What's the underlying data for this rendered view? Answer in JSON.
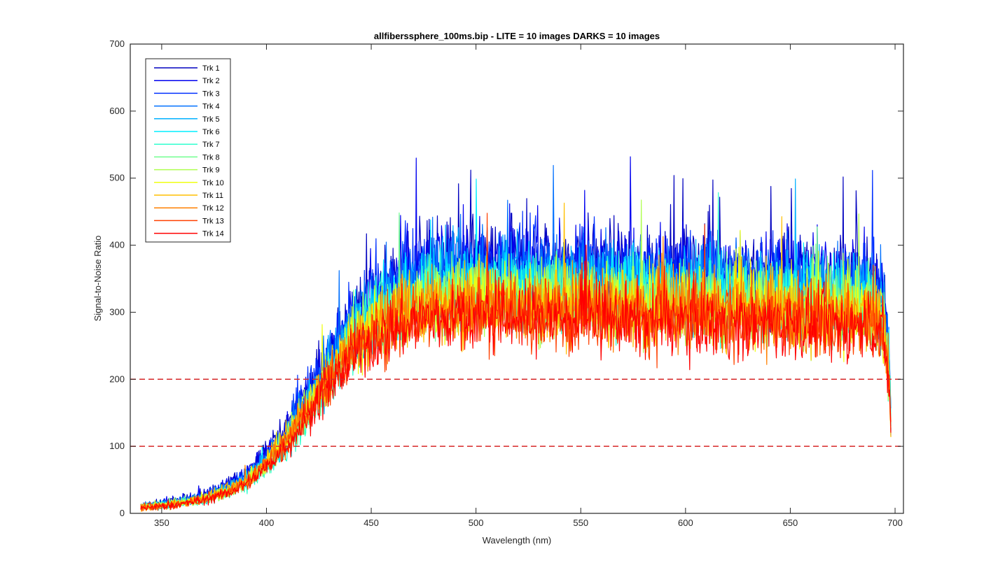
{
  "chart_data": {
    "type": "line",
    "title": "allfiberssphere_100ms.bip - LITE =  10 images  DARKS = 10 images",
    "xlabel": "Wavelength (nm)",
    "ylabel": "Signal-to-Noise Ratio",
    "xlim": [
      335,
      704
    ],
    "ylim": [
      0,
      700
    ],
    "xticks": [
      350,
      400,
      450,
      500,
      550,
      600,
      650,
      700
    ],
    "yticks": [
      0,
      100,
      200,
      300,
      400,
      500,
      600,
      700
    ],
    "grid": false,
    "legend_position": "top-left",
    "reference_lines": [
      {
        "y": 100,
        "color": "#d62728",
        "style": "dashed"
      },
      {
        "y": 200,
        "color": "#d62728",
        "style": "dashed"
      }
    ],
    "x": [
      340,
      350,
      360,
      370,
      380,
      390,
      400,
      410,
      420,
      430,
      440,
      450,
      460,
      470,
      480,
      490,
      500,
      510,
      520,
      530,
      540,
      550,
      560,
      570,
      580,
      590,
      600,
      610,
      620,
      630,
      640,
      650,
      660,
      670,
      680,
      690,
      694,
      697,
      698
    ],
    "series": [
      {
        "name": "Trk 1",
        "color": "#0000bf",
        "values": [
          11,
          15,
          20,
          28,
          40,
          60,
          90,
          130,
          185,
          235,
          290,
          320,
          345,
          365,
          370,
          372,
          375,
          375,
          372,
          370,
          370,
          372,
          370,
          368,
          365,
          365,
          365,
          365,
          363,
          360,
          360,
          360,
          358,
          356,
          355,
          352,
          335,
          250,
          150
        ]
      },
      {
        "name": "Trk 2",
        "color": "#0000ef",
        "values": [
          11,
          15,
          20,
          27,
          39,
          58,
          88,
          127,
          182,
          232,
          287,
          317,
          342,
          360,
          365,
          367,
          370,
          370,
          368,
          366,
          366,
          368,
          366,
          364,
          361,
          361,
          361,
          361,
          359,
          356,
          356,
          356,
          354,
          352,
          351,
          348,
          330,
          245,
          145
        ]
      },
      {
        "name": "Trk 3",
        "color": "#0030ff",
        "values": [
          10,
          14,
          19,
          26,
          37,
          55,
          85,
          123,
          177,
          227,
          282,
          312,
          336,
          354,
          360,
          362,
          365,
          365,
          362,
          361,
          361,
          362,
          361,
          359,
          356,
          356,
          356,
          356,
          354,
          351,
          351,
          351,
          349,
          347,
          346,
          343,
          326,
          240,
          140
        ]
      },
      {
        "name": "Trk 4",
        "color": "#0070ff",
        "values": [
          10,
          14,
          18,
          25,
          35,
          52,
          81,
          118,
          170,
          220,
          275,
          305,
          330,
          347,
          353,
          355,
          358,
          358,
          355,
          354,
          354,
          355,
          354,
          352,
          349,
          349,
          349,
          349,
          347,
          344,
          344,
          344,
          342,
          340,
          339,
          336,
          320,
          235,
          135
        ]
      },
      {
        "name": "Trk 5",
        "color": "#00b0ff",
        "values": [
          10,
          13,
          17,
          23,
          33,
          49,
          77,
          112,
          163,
          212,
          267,
          297,
          321,
          338,
          344,
          346,
          349,
          349,
          346,
          345,
          345,
          346,
          345,
          343,
          340,
          340,
          340,
          340,
          338,
          335,
          335,
          335,
          333,
          331,
          330,
          328,
          312,
          230,
          130
        ]
      },
      {
        "name": "Trk 6",
        "color": "#00efff",
        "values": [
          9,
          12,
          16,
          22,
          31,
          46,
          73,
          106,
          155,
          204,
          258,
          288,
          312,
          329,
          335,
          337,
          340,
          340,
          337,
          336,
          336,
          337,
          336,
          334,
          331,
          331,
          331,
          331,
          329,
          327,
          327,
          327,
          325,
          323,
          322,
          320,
          305,
          225,
          128
        ]
      },
      {
        "name": "Trk 7",
        "color": "#30ffcf",
        "values": [
          9,
          12,
          15,
          21,
          29,
          43,
          69,
          101,
          148,
          197,
          250,
          280,
          303,
          320,
          326,
          328,
          331,
          331,
          328,
          327,
          327,
          328,
          327,
          325,
          322,
          322,
          322,
          322,
          320,
          318,
          318,
          318,
          316,
          314,
          313,
          312,
          298,
          220,
          125
        ]
      },
      {
        "name": "Trk 8",
        "color": "#70ff8f",
        "values": [
          9,
          12,
          16,
          21,
          30,
          45,
          72,
          105,
          152,
          200,
          250,
          278,
          300,
          316,
          322,
          324,
          326,
          326,
          323,
          322,
          322,
          323,
          322,
          320,
          317,
          317,
          317,
          317,
          315,
          313,
          313,
          313,
          311,
          309,
          308,
          307,
          293,
          218,
          125
        ]
      },
      {
        "name": "Trk 9",
        "color": "#afff50",
        "values": [
          9,
          12,
          16,
          22,
          31,
          47,
          75,
          109,
          157,
          204,
          252,
          278,
          298,
          312,
          318,
          320,
          322,
          322,
          319,
          318,
          318,
          319,
          318,
          316,
          313,
          313,
          313,
          313,
          311,
          309,
          309,
          309,
          307,
          305,
          304,
          303,
          290,
          215,
          125
        ]
      },
      {
        "name": "Trk 10",
        "color": "#efff10",
        "values": [
          9,
          12,
          16,
          22,
          32,
          48,
          77,
          112,
          160,
          207,
          253,
          278,
          297,
          310,
          315,
          317,
          319,
          319,
          316,
          315,
          315,
          316,
          315,
          313,
          310,
          310,
          310,
          310,
          308,
          306,
          306,
          306,
          304,
          302,
          301,
          300,
          287,
          213,
          125
        ]
      },
      {
        "name": "Trk 11",
        "color": "#ffbf00",
        "values": [
          9,
          12,
          16,
          22,
          32,
          48,
          77,
          113,
          161,
          207,
          252,
          276,
          294,
          306,
          311,
          313,
          314,
          314,
          311,
          310,
          310,
          311,
          310,
          308,
          305,
          305,
          305,
          305,
          303,
          301,
          301,
          301,
          299,
          297,
          296,
          295,
          283,
          210,
          125
        ]
      },
      {
        "name": "Trk 12",
        "color": "#ff8000",
        "values": [
          9,
          11,
          15,
          21,
          31,
          47,
          75,
          111,
          158,
          203,
          247,
          271,
          289,
          300,
          305,
          307,
          308,
          308,
          305,
          304,
          304,
          305,
          304,
          302,
          300,
          300,
          300,
          300,
          298,
          296,
          296,
          296,
          294,
          292,
          291,
          290,
          278,
          207,
          125
        ]
      },
      {
        "name": "Trk 13",
        "color": "#ff4000",
        "values": [
          8,
          11,
          15,
          21,
          30,
          45,
          72,
          107,
          153,
          197,
          240,
          264,
          281,
          292,
          297,
          299,
          300,
          300,
          298,
          297,
          297,
          298,
          297,
          295,
          293,
          293,
          293,
          293,
          291,
          289,
          289,
          289,
          287,
          285,
          284,
          283,
          272,
          203,
          125
        ]
      },
      {
        "name": "Trk 14",
        "color": "#ff0000",
        "values": [
          8,
          10,
          14,
          20,
          28,
          43,
          68,
          102,
          146,
          188,
          231,
          256,
          274,
          285,
          290,
          292,
          293,
          293,
          291,
          290,
          290,
          291,
          290,
          288,
          286,
          286,
          286,
          286,
          284,
          282,
          282,
          282,
          280,
          279,
          278,
          277,
          266,
          200,
          125
        ]
      }
    ]
  }
}
